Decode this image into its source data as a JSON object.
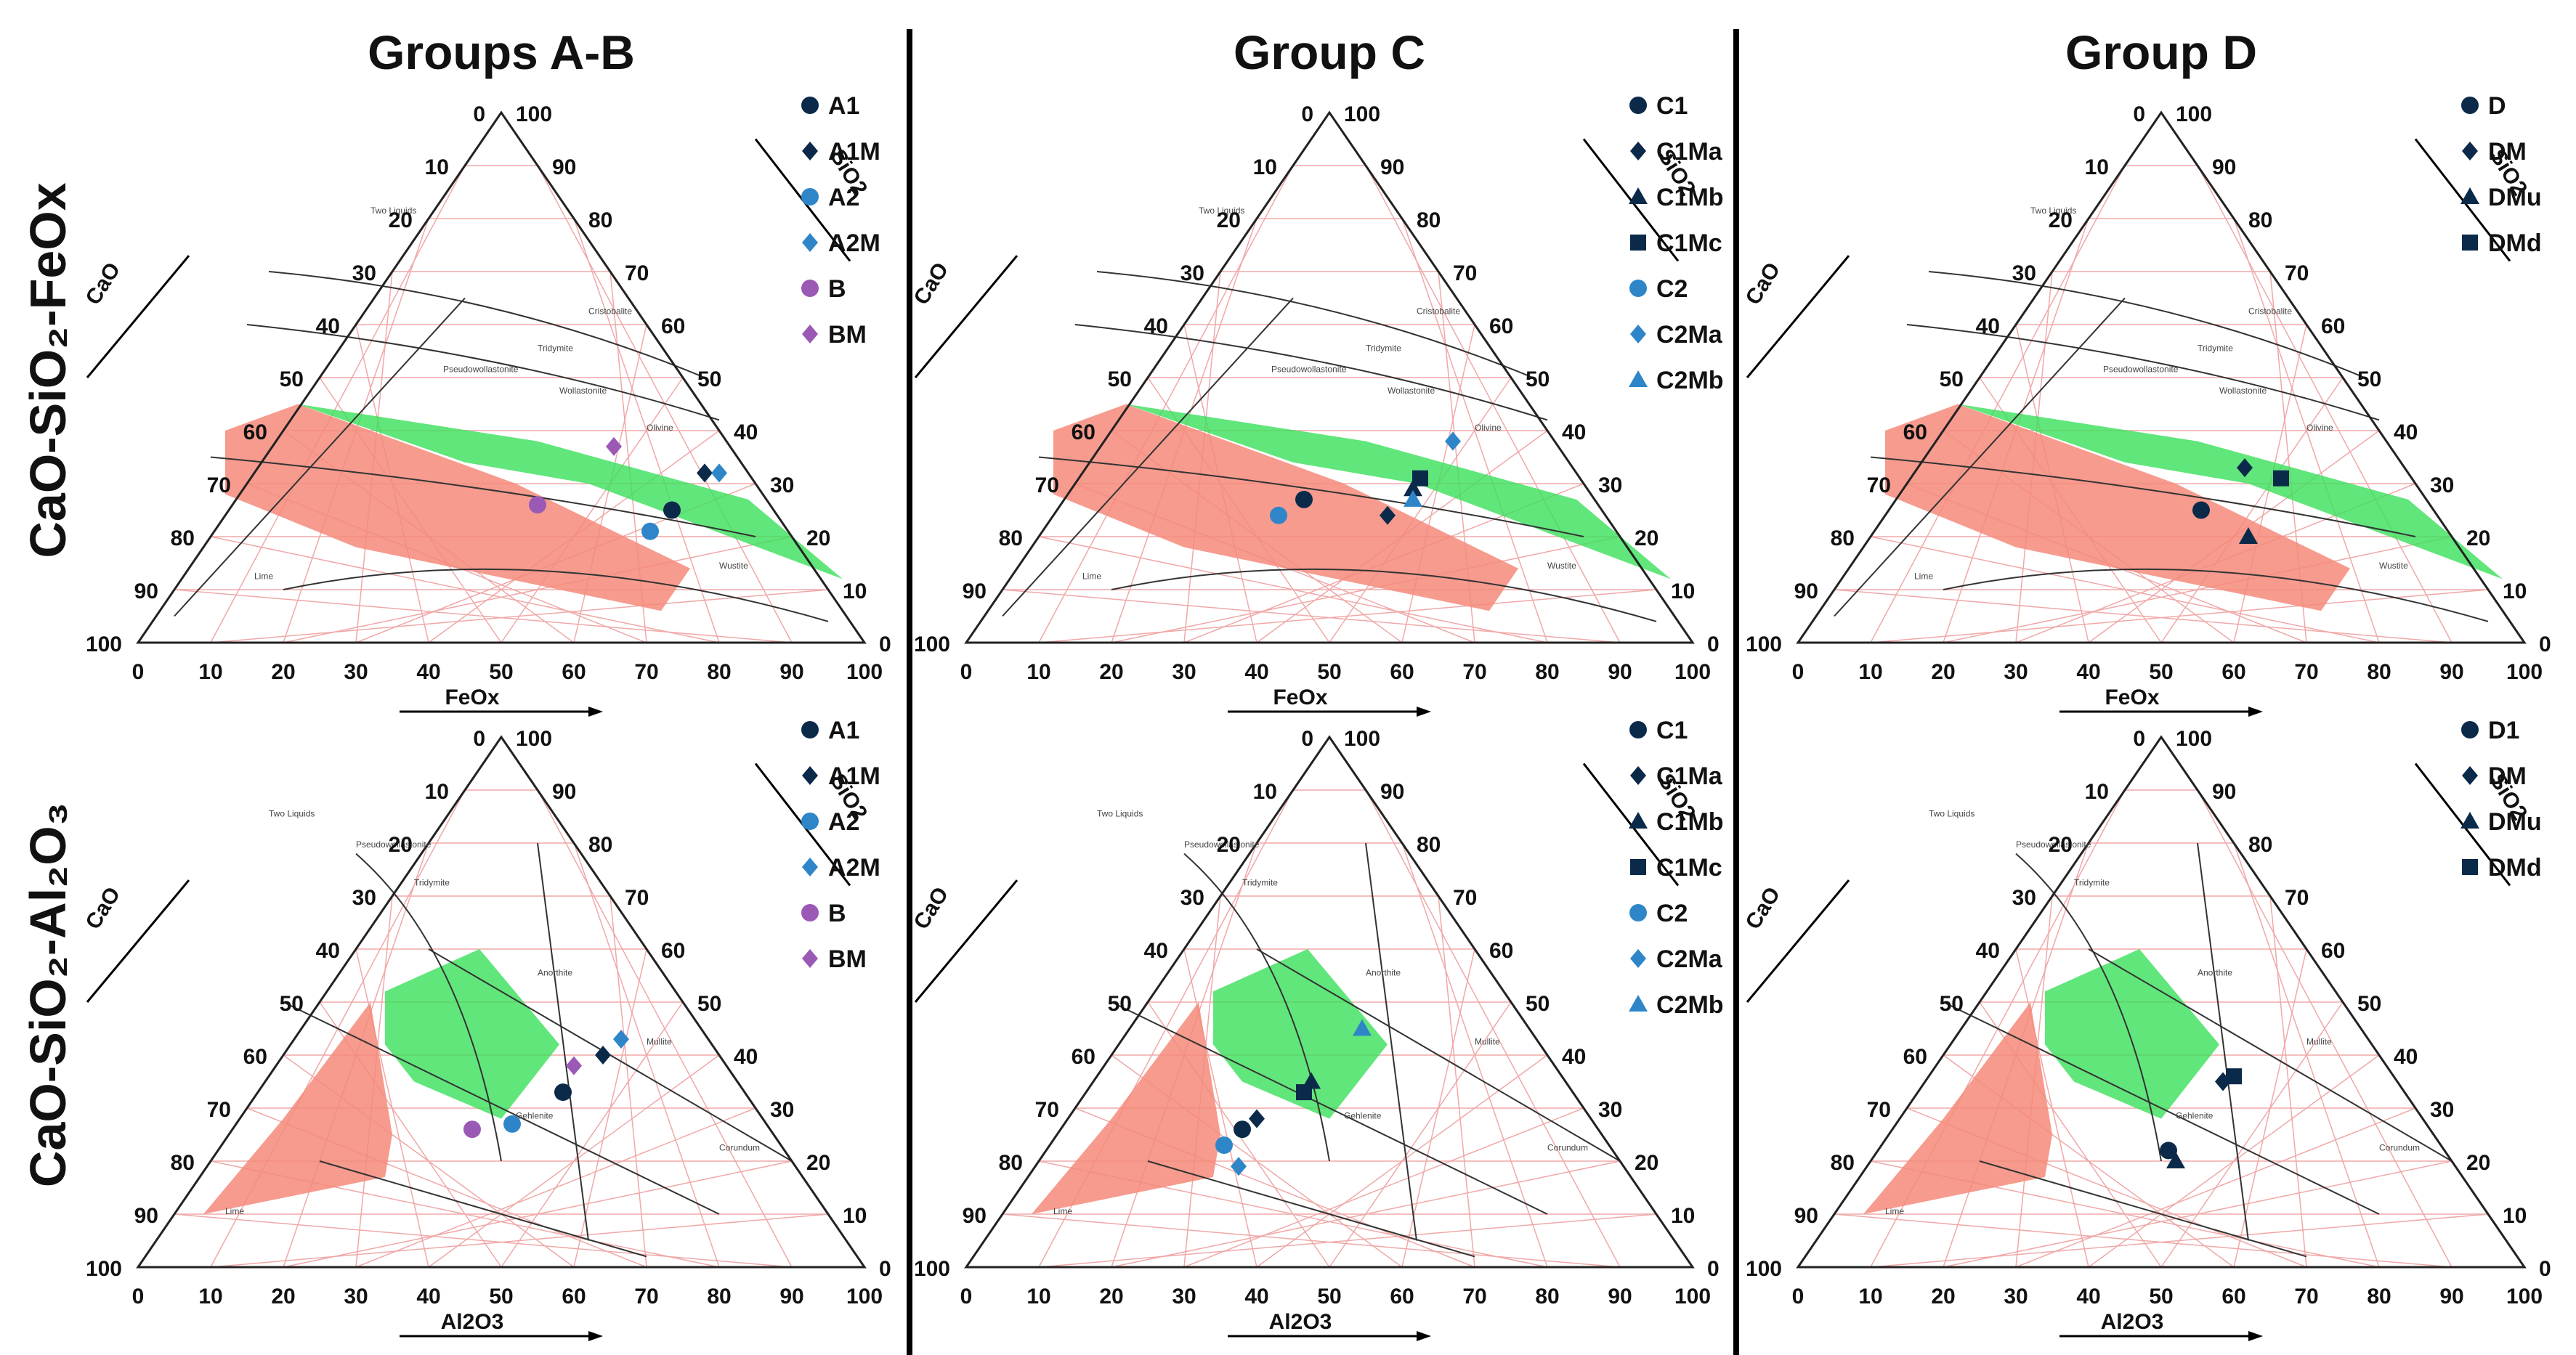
{
  "column_titles": [
    "Groups A-B",
    "Group C",
    "Group D"
  ],
  "row_titles": [
    "CaO-SiO₂-FeOx",
    "CaO-SiO₂-Al₂O₃"
  ],
  "colors": {
    "navy": "#0b2a4a",
    "blue": "#2e86c8",
    "purple": "#9b59b6",
    "green_zone": "#39e05a",
    "red_zone": "#f48a7a",
    "divider": "#000000",
    "phase_lines": "#333333",
    "grid": "#f0a8a8"
  },
  "chart_data": [
    {
      "type": "scatter",
      "system": "ternary",
      "panel": "Groups A-B / CaO-SiO2-FeOx",
      "left_axis": "CaO",
      "right_axis": "SiO2",
      "bottom_axis": "FeOx",
      "ticks": [
        "0",
        "10",
        "20",
        "30",
        "40",
        "50",
        "60",
        "70",
        "80",
        "90",
        "100"
      ],
      "phase_labels": [
        "Cristobalite",
        "Tridymite",
        "Pseudowollastonite",
        "Wollastonite",
        "Olivine",
        "Wustite",
        "Lime",
        "Two Liquids"
      ],
      "legend": [
        "A1",
        "A1M",
        "A2",
        "A2M",
        "B",
        "BM"
      ],
      "points": [
        {
          "name": "A1",
          "marker": "circle",
          "color": "navy",
          "x": 61,
          "y": 25
        },
        {
          "name": "A1M",
          "marker": "diamond",
          "color": "navy",
          "x": 62,
          "y": 32
        },
        {
          "name": "A2",
          "marker": "circle",
          "color": "blue",
          "x": 60,
          "y": 21
        },
        {
          "name": "A2M",
          "marker": "diamond",
          "color": "blue",
          "x": 64,
          "y": 32
        },
        {
          "name": "B",
          "marker": "circle",
          "color": "purple",
          "x": 42,
          "y": 26
        },
        {
          "name": "BM",
          "marker": "diamond",
          "color": "purple",
          "x": 47,
          "y": 37
        }
      ]
    },
    {
      "type": "scatter",
      "system": "ternary",
      "panel": "Group C / CaO-SiO2-FeOx",
      "left_axis": "CaO",
      "right_axis": "SiO2",
      "bottom_axis": "FeOx",
      "ticks": [
        "0",
        "10",
        "20",
        "30",
        "40",
        "50",
        "60",
        "70",
        "80",
        "90",
        "100"
      ],
      "phase_labels": [
        "Cristobalite",
        "Tridymite",
        "Pseudowollastonite",
        "Wollastonite",
        "Olivine",
        "Wustite",
        "Lime",
        "Two Liquids"
      ],
      "legend": [
        "C1",
        "C1Ma",
        "C1Mb",
        "C1Mc",
        "C2",
        "C2Ma",
        "C2Mb"
      ],
      "points": [
        {
          "name": "C1",
          "marker": "circle",
          "color": "navy",
          "x": 33,
          "y": 27
        },
        {
          "name": "C1Ma",
          "marker": "diamond",
          "color": "navy",
          "x": 46,
          "y": 24
        },
        {
          "name": "C1Mb",
          "marker": "triangle",
          "color": "navy",
          "x": 47,
          "y": 29
        },
        {
          "name": "C1Mc",
          "marker": "square",
          "color": "navy",
          "x": 47,
          "y": 31
        },
        {
          "name": "C2",
          "marker": "circle",
          "color": "blue",
          "x": 31,
          "y": 24
        },
        {
          "name": "C2Ma",
          "marker": "diamond",
          "color": "blue",
          "x": 48,
          "y": 38
        },
        {
          "name": "C2Mb",
          "marker": "triangle",
          "color": "blue",
          "x": 48,
          "y": 27
        }
      ]
    },
    {
      "type": "scatter",
      "system": "ternary",
      "panel": "Group D / CaO-SiO2-FeOx",
      "left_axis": "CaO",
      "right_axis": "SiO2",
      "bottom_axis": "FeOx",
      "ticks": [
        "0",
        "10",
        "20",
        "30",
        "40",
        "50",
        "60",
        "70",
        "80",
        "90",
        "100"
      ],
      "phase_labels": [
        "Cristobalite",
        "Tridymite",
        "Pseudowollastonite",
        "Wollastonite",
        "Olivine",
        "Wustite",
        "Lime",
        "Two Liquids"
      ],
      "legend": [
        "D",
        "DM",
        "DMu",
        "DMd"
      ],
      "points": [
        {
          "name": "D",
          "marker": "circle",
          "color": "navy",
          "x": 43,
          "y": 25
        },
        {
          "name": "DM",
          "marker": "diamond",
          "color": "navy",
          "x": 45,
          "y": 33
        },
        {
          "name": "DMu",
          "marker": "triangle",
          "color": "navy",
          "x": 52,
          "y": 20
        },
        {
          "name": "DMd",
          "marker": "square",
          "color": "navy",
          "x": 51,
          "y": 31
        }
      ]
    },
    {
      "type": "scatter",
      "system": "ternary",
      "panel": "Groups A-B / CaO-SiO2-Al2O3",
      "left_axis": "CaO",
      "right_axis": "SiO2",
      "bottom_axis": "Al2O3",
      "ticks": [
        "0",
        "10",
        "20",
        "30",
        "40",
        "50",
        "60",
        "70",
        "80",
        "90",
        "100"
      ],
      "phase_labels": [
        "Pseudowollastonite",
        "Tridymite",
        "Anorthite",
        "Gehlenite",
        "Mullite",
        "Corundum",
        "Lime",
        "Two Liquids"
      ],
      "legend": [
        "A1",
        "A1M",
        "A2",
        "A2M",
        "B",
        "BM"
      ],
      "points": [
        {
          "name": "A1",
          "marker": "circle",
          "color": "navy",
          "x": 42,
          "y": 33
        },
        {
          "name": "A1M",
          "marker": "diamond",
          "color": "navy",
          "x": 44,
          "y": 40
        },
        {
          "name": "A2",
          "marker": "circle",
          "color": "blue",
          "x": 38,
          "y": 27
        },
        {
          "name": "A2M",
          "marker": "diamond",
          "color": "blue",
          "x": 45,
          "y": 43
        },
        {
          "name": "B",
          "marker": "circle",
          "color": "purple",
          "x": 33,
          "y": 26
        },
        {
          "name": "BM",
          "marker": "diamond",
          "color": "purple",
          "x": 41,
          "y": 38
        }
      ]
    },
    {
      "type": "scatter",
      "system": "ternary",
      "panel": "Group C / CaO-SiO2-Al2O3",
      "left_axis": "CaO",
      "right_axis": "SiO2",
      "bottom_axis": "Al2O3",
      "ticks": [
        "0",
        "10",
        "20",
        "30",
        "40",
        "50",
        "60",
        "70",
        "80",
        "90",
        "100"
      ],
      "phase_labels": [
        "Pseudowollastonite",
        "Tridymite",
        "Anorthite",
        "Gehlenite",
        "Mullite",
        "Corundum",
        "Lime",
        "Two Liquids"
      ],
      "legend": [
        "C1",
        "C1Ma",
        "C1Mb",
        "C1Mc",
        "C2",
        "C2Ma",
        "C2Mb"
      ],
      "points": [
        {
          "name": "C1",
          "marker": "circle",
          "color": "navy",
          "x": 25,
          "y": 26
        },
        {
          "name": "C1Ma",
          "marker": "diamond",
          "color": "navy",
          "x": 26,
          "y": 28
        },
        {
          "name": "C1Mb",
          "marker": "triangle",
          "color": "navy",
          "x": 30,
          "y": 35
        },
        {
          "name": "C1Mc",
          "marker": "square",
          "color": "navy",
          "x": 30,
          "y": 33
        },
        {
          "name": "C2",
          "marker": "circle",
          "color": "blue",
          "x": 24,
          "y": 23
        },
        {
          "name": "C2Ma",
          "marker": "diamond",
          "color": "blue",
          "x": 28,
          "y": 19
        },
        {
          "name": "C2Mb",
          "marker": "triangle",
          "color": "blue",
          "x": 32,
          "y": 45
        }
      ]
    },
    {
      "type": "scatter",
      "system": "ternary",
      "panel": "Group D / CaO-SiO2-Al2O3",
      "left_axis": "CaO",
      "right_axis": "SiO2",
      "bottom_axis": "Al2O3",
      "ticks": [
        "0",
        "10",
        "20",
        "30",
        "40",
        "50",
        "60",
        "70",
        "80",
        "90",
        "100"
      ],
      "phase_labels": [
        "Pseudowollastonite",
        "Tridymite",
        "Anorthite",
        "Gehlenite",
        "Mullite",
        "Corundum",
        "Lime",
        "Two Liquids"
      ],
      "legend": [
        "D1",
        "DM",
        "DMu",
        "DMd"
      ],
      "points": [
        {
          "name": "D1",
          "marker": "circle",
          "color": "navy",
          "x": 40,
          "y": 22
        },
        {
          "name": "DM",
          "marker": "diamond",
          "color": "navy",
          "x": 41,
          "y": 35
        },
        {
          "name": "DMu",
          "marker": "triangle",
          "color": "navy",
          "x": 42,
          "y": 20
        },
        {
          "name": "DMd",
          "marker": "square",
          "color": "navy",
          "x": 42,
          "y": 36
        }
      ]
    }
  ]
}
